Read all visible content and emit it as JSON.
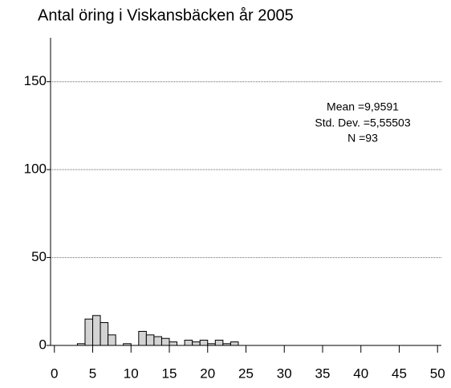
{
  "chart_data": {
    "type": "histogram",
    "title": "Antal öring i Viskansbäcken år 2005",
    "annotations": [
      "Mean =9,9591",
      "Std. Dev. =5,55503",
      "N =93"
    ],
    "bins": [
      3,
      4,
      5,
      6,
      7,
      8,
      9,
      10,
      11,
      12,
      13,
      14,
      15,
      16,
      17,
      18,
      19,
      20,
      21,
      22,
      23,
      24
    ],
    "values": [
      1,
      15,
      17,
      13,
      6,
      0,
      1,
      0,
      8,
      6,
      5,
      4,
      2,
      0,
      3,
      2,
      3,
      1,
      3,
      1,
      2
    ],
    "color": "#d3d3d3",
    "xlim": [
      -0.5,
      50.5
    ],
    "xticks": [
      0,
      5,
      10,
      15,
      20,
      25,
      30,
      35,
      40,
      45,
      50
    ],
    "ylim": [
      0,
      175
    ],
    "yticks": [
      0,
      50,
      100,
      150
    ],
    "grid": true
  }
}
